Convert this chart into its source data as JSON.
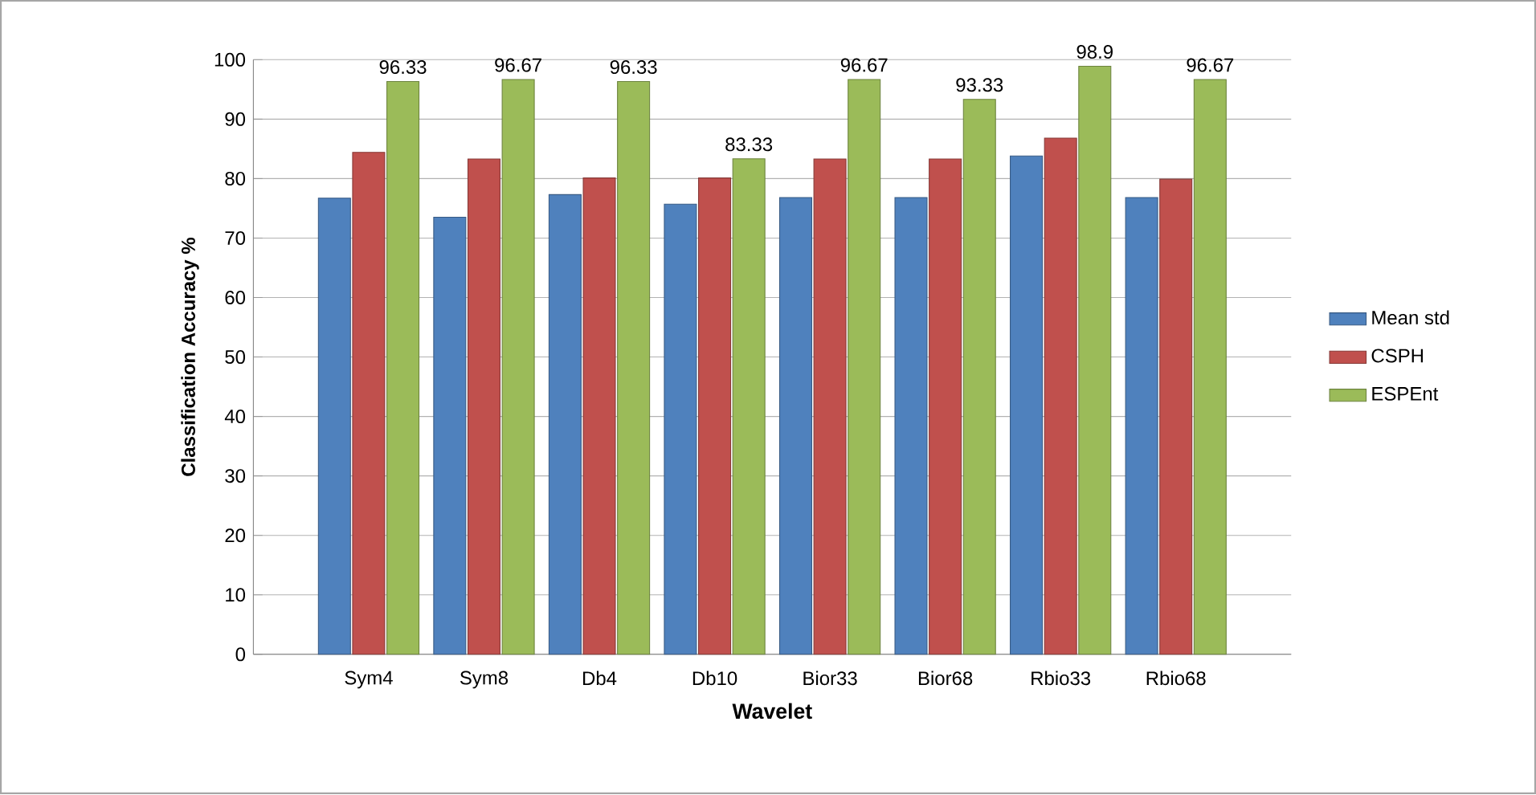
{
  "chart_data": {
    "type": "bar",
    "xlabel": "Wavelet",
    "ylabel": "Classification Accuracy %",
    "categories": [
      "Sym4",
      "Sym8",
      "Db4",
      "Db10",
      "Bior33",
      "Bior68",
      "Rbio33",
      "Rbio68"
    ],
    "series": [
      {
        "name": "Mean std",
        "color": "#4f81bd",
        "values": [
          76.7,
          73.5,
          77.3,
          75.7,
          76.8,
          76.8,
          83.8,
          76.8
        ]
      },
      {
        "name": "CSPH",
        "color": "#c0504d",
        "values": [
          84.4,
          83.3,
          80.1,
          80.1,
          83.3,
          83.3,
          86.8,
          79.9
        ]
      },
      {
        "name": "ESPEnt",
        "color": "#9bbb59",
        "values": [
          96.33,
          96.67,
          96.33,
          83.33,
          96.67,
          93.33,
          98.9,
          96.67
        ],
        "value_labels": [
          "96.33",
          "96.67",
          "96.33",
          "83.33",
          "96.67",
          "93.33",
          "98.9",
          "96.67"
        ]
      }
    ],
    "ylim": [
      0,
      100
    ],
    "yticks": [
      0,
      10,
      20,
      30,
      40,
      50,
      60,
      70,
      80,
      90,
      100
    ],
    "grid": "y",
    "legend": "right"
  }
}
